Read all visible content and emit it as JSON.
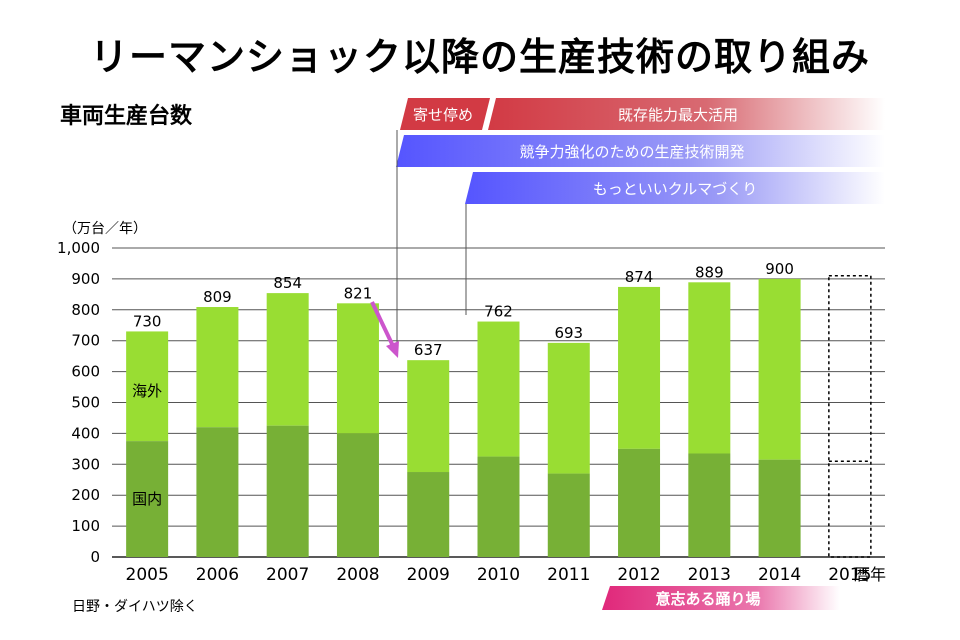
{
  "title": "リーマンショック以降の生産技術の取り組み",
  "subtitle": "車両生産台数",
  "unit_label": "（万台／年）",
  "note": "日野・ダイハツ除く",
  "banners": {
    "row1_left": "寄せ停め",
    "row1_right": "既存能力最大活用",
    "row2": "競争力強化のための生産技術開発",
    "row3": "もっといいクルマづくり",
    "bottom": "意志ある踊り場"
  },
  "colors": {
    "overseas": "#99dd33",
    "domestic": "#77b036",
    "banner_red": "#d23a44",
    "banner_blue": "#5555ff",
    "banner_pink": "#e0287a",
    "arrow": "#cc55cc"
  },
  "chart_data": {
    "type": "bar",
    "stacked": true,
    "categories": [
      "2005",
      "2006",
      "2007",
      "2008",
      "2009",
      "2010",
      "2011",
      "2012",
      "2013",
      "2014",
      "2015"
    ],
    "x_suffix": "暦年",
    "series": [
      {
        "name": "国内",
        "values": [
          375,
          420,
          425,
          400,
          275,
          325,
          270,
          350,
          335,
          315,
          null
        ]
      },
      {
        "name": "海外",
        "values": [
          355,
          389,
          429,
          421,
          362,
          437,
          423,
          524,
          554,
          585,
          null
        ]
      }
    ],
    "totals": [
      730,
      809,
      854,
      821,
      637,
      762,
      693,
      874,
      889,
      900,
      null
    ],
    "placeholder_2015": {
      "total": 910,
      "domestic": 310
    },
    "yticks": [
      "0",
      "100",
      "200",
      "300",
      "400",
      "500",
      "600",
      "700",
      "800",
      "900",
      "1,000"
    ],
    "ylim": [
      0,
      1000
    ],
    "grid": true
  }
}
